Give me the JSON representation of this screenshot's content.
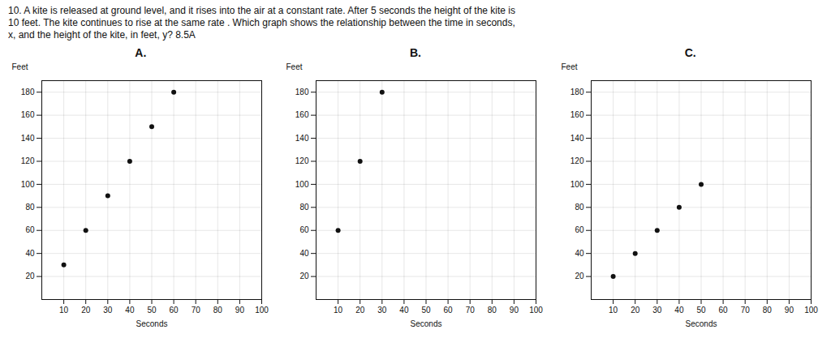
{
  "title": [
    "10. A kite is released at ground level, and it rises into the air at a constant rate. After 5 seconds the height of the kite is",
    "10 feet. The kite continues to rise at the same rate . Which graph shows the relationship between the time in seconds,",
    "x, and the height of the kite, in feet, y? 8.5A"
  ],
  "chart_data": [
    {
      "type": "scatter",
      "title": "A.",
      "x": [
        10,
        20,
        30,
        40,
        50,
        60
      ],
      "values": [
        30,
        60,
        90,
        120,
        150,
        180
      ],
      "xlabel": "Seconds",
      "ylabel": "Feet",
      "xlim": [
        0,
        100
      ],
      "ylim": [
        0,
        190
      ],
      "xticks": [
        10,
        20,
        30,
        40,
        50,
        60,
        70,
        80,
        90,
        100
      ],
      "yticks": [
        20,
        40,
        60,
        80,
        100,
        120,
        140,
        160,
        180
      ],
      "grid": true,
      "color": "#111111"
    },
    {
      "type": "scatter",
      "title": "B.",
      "x": [
        10,
        20,
        30
      ],
      "values": [
        60,
        120,
        180
      ],
      "xlabel": "Seconds",
      "ylabel": "Feet",
      "xlim": [
        0,
        100
      ],
      "ylim": [
        0,
        190
      ],
      "xticks": [
        10,
        20,
        30,
        40,
        50,
        60,
        70,
        80,
        90,
        100
      ],
      "yticks": [
        20,
        40,
        60,
        80,
        100,
        120,
        140,
        160,
        180
      ],
      "grid": true,
      "color": "#111111"
    },
    {
      "type": "scatter",
      "title": "C.",
      "x": [
        10,
        20,
        30,
        40,
        50
      ],
      "values": [
        20,
        40,
        60,
        80,
        100
      ],
      "xlabel": "Seconds",
      "ylabel": "Feet",
      "xlim": [
        0,
        100
      ],
      "ylim": [
        0,
        190
      ],
      "xticks": [
        10,
        20,
        30,
        40,
        50,
        60,
        70,
        80,
        90,
        100
      ],
      "yticks": [
        20,
        40,
        60,
        80,
        100,
        120,
        140,
        160,
        180
      ],
      "grid": true,
      "color": "#111111"
    }
  ]
}
